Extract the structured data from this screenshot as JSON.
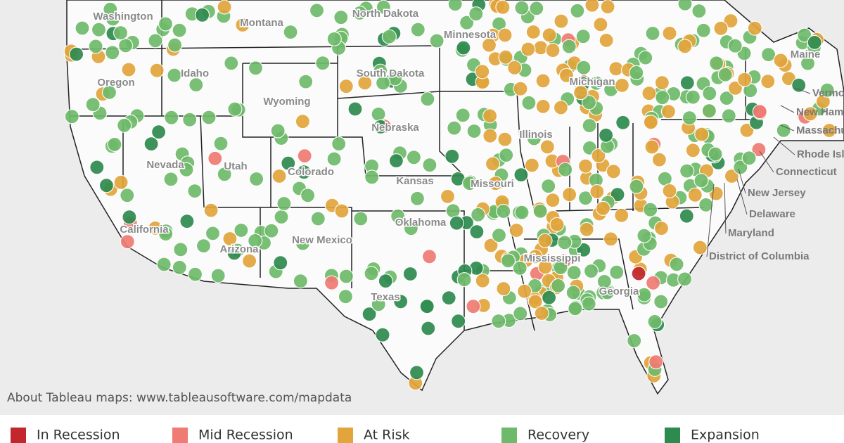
{
  "map": {
    "state_labels": [
      "Washington",
      "Montana",
      "North Dakota",
      "Minnesota",
      "South Dakota",
      "Oregon",
      "Idaho",
      "Wyoming",
      "Nebraska",
      "Nevada",
      "Utah",
      "Colorado",
      "Kansas",
      "Missouri",
      "Oklahoma",
      "New Mexico",
      "Arizona",
      "California",
      "Texas",
      "Illinois",
      "Michigan",
      "Maine",
      "Mississippi",
      "Georgia"
    ],
    "callout_labels": [
      "Vermont",
      "New Hampshire",
      "Massachusetts",
      "Rhode Island",
      "Connecticut",
      "New Jersey",
      "Delaware",
      "Maryland",
      "District of Columbia"
    ],
    "attribution": "About Tableau maps: www.tableausoftware.com/mapdata",
    "legend": [
      {
        "label": "In Recession",
        "color": "#c1272d"
      },
      {
        "label": "Mid Recession",
        "color": "#ef7b73"
      },
      {
        "label": "At Risk",
        "color": "#e2a53b"
      },
      {
        "label": "Recovery",
        "color": "#6fba6a"
      },
      {
        "label": "Expansion",
        "color": "#2e8b4f"
      }
    ]
  }
}
